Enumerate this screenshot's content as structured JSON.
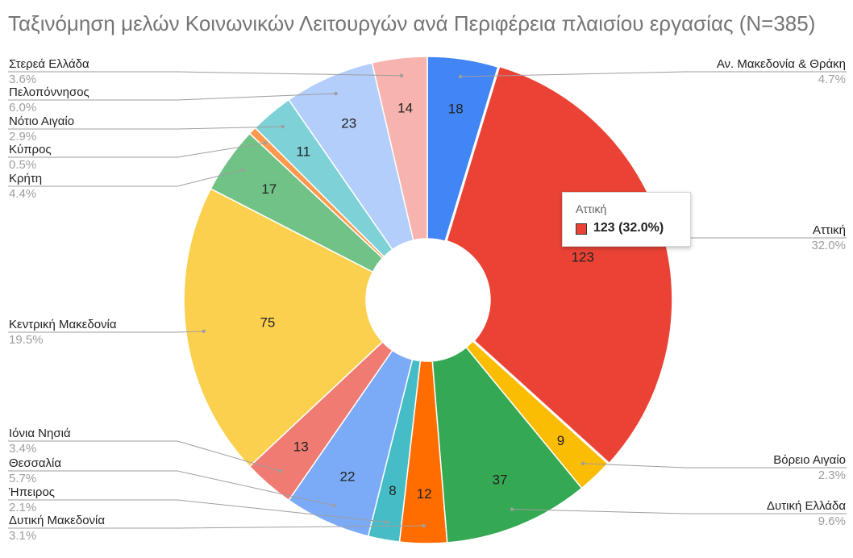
{
  "chart_data": {
    "type": "pie",
    "title": "Ταξινόμηση μελών Κοινωνικών Λειτουργών ανά Περιφέρεια πλαισίου εργασίας (N=385)",
    "donut": true,
    "slices": [
      {
        "label": "Αν. Μακεδονία & Θράκη",
        "value": 18,
        "percent": "4.7%",
        "color": "#4285f4"
      },
      {
        "label": "Αττική",
        "value": 123,
        "percent": "32.0%",
        "color": "#ea4335"
      },
      {
        "label": "Βόρειο Αιγαίο",
        "value": 9,
        "percent": "2.3%",
        "color": "#fbbc04"
      },
      {
        "label": "Δυτική Ελλάδα",
        "value": 37,
        "percent": "9.6%",
        "color": "#34a853"
      },
      {
        "label": "Δυτική Μακεδονία",
        "value": 12,
        "percent": "3.1%",
        "color": "#ff6d01"
      },
      {
        "label": "Ήπειρος",
        "value": 8,
        "percent": "2.1%",
        "color": "#46bdc6"
      },
      {
        "label": "Θεσσαλία",
        "value": 22,
        "percent": "5.7%",
        "color": "#7baaf7"
      },
      {
        "label": "Ιόνια Νησιά",
        "value": 13,
        "percent": "3.4%",
        "color": "#f07b72"
      },
      {
        "label": "Κεντρική Μακεδονία",
        "value": 75,
        "percent": "19.5%",
        "color": "#fcd04f"
      },
      {
        "label": "Κρήτη",
        "value": 17,
        "percent": "4.4%",
        "color": "#71c287"
      },
      {
        "label": "Κύπρος",
        "value": 2,
        "percent": "0.5%",
        "color": "#ff994d"
      },
      {
        "label": "Νότιο Αιγαίο",
        "value": 11,
        "percent": "2.9%",
        "color": "#7ed1d7"
      },
      {
        "label": "Πελοπόννησος",
        "value": 23,
        "percent": "6.0%",
        "color": "#b3cefb"
      },
      {
        "label": "Στερεά Ελλάδα",
        "value": 14,
        "percent": "3.6%",
        "color": "#f7b4ae"
      }
    ],
    "tooltip": {
      "title": "Αττική",
      "value": "123 (32.0%)",
      "color": "#ea4335"
    }
  }
}
